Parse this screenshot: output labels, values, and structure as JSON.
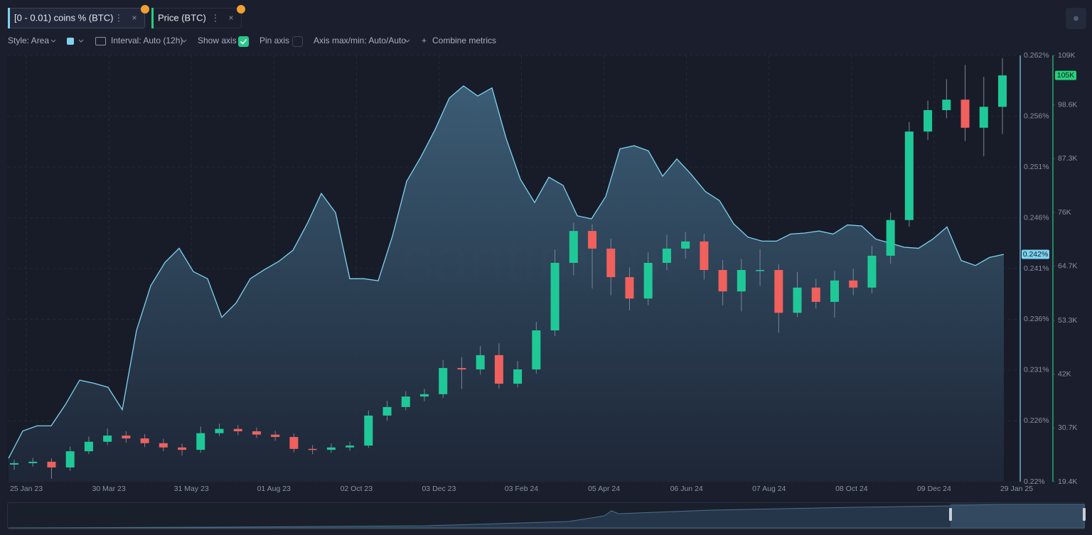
{
  "ui": {
    "toolbar": {
      "style": "Style: Area",
      "interval": "Interval: Auto (12h)",
      "show_axis": "Show axis",
      "pin_axis": "Pin axis",
      "axis_maxmin": "Axis max/min: Auto/Auto",
      "combine": "Combine metrics"
    }
  },
  "chart_data": {
    "type": "combo",
    "watermark": "·santiment",
    "x_tick_labels": [
      "25 Jan 23",
      "30 Mar 23",
      "31 May 23",
      "01 Aug 23",
      "02 Oct 23",
      "03 Dec 23",
      "03 Feb 24",
      "05 Apr 24",
      "06 Jun 24",
      "07 Aug 24",
      "08 Oct 24",
      "09 Dec 24",
      "29 Jan 25"
    ],
    "grid": true,
    "ylim": [
      0.22,
      0.262
    ],
    "yticks": [
      {
        "value": 0.22,
        "label": "0.22%"
      },
      {
        "value": 0.226,
        "label": "0.226%"
      },
      {
        "value": 0.231,
        "label": "0.231%"
      },
      {
        "value": 0.236,
        "label": "0.236%"
      },
      {
        "value": 0.241,
        "label": "0.241%"
      },
      {
        "value": 0.246,
        "label": "0.246%"
      },
      {
        "value": 0.251,
        "label": "0.251%"
      },
      {
        "value": 0.256,
        "label": "0.256%"
      },
      {
        "value": 0.262,
        "label": "0.262%"
      }
    ],
    "y2lim": [
      19.4,
      109
    ],
    "y2ticks": [
      {
        "value": 19.4,
        "label": "19.4K"
      },
      {
        "value": 30.7,
        "label": "30.7K"
      },
      {
        "value": 42,
        "label": "42K"
      },
      {
        "value": 53.3,
        "label": "53.3K"
      },
      {
        "value": 64.7,
        "label": "64.7K"
      },
      {
        "value": 76,
        "label": "76K"
      },
      {
        "value": 87.3,
        "label": "87.3K"
      },
      {
        "value": 98.6,
        "label": "98.6K"
      },
      {
        "value": 109,
        "label": "109K"
      }
    ],
    "series": [
      {
        "name": "[0 - 0.01) coins % (BTC)",
        "type": "area",
        "color": "#7fd3f0",
        "last_value_label": "0.242%",
        "values": [
          0.2223,
          0.225,
          0.2255,
          0.2255,
          0.2276,
          0.23,
          0.2297,
          0.2293,
          0.2271,
          0.2349,
          0.2393,
          0.2416,
          0.243,
          0.2407,
          0.24,
          0.2362,
          0.2376,
          0.24,
          0.2409,
          0.2417,
          0.2428,
          0.2454,
          0.2484,
          0.2465,
          0.24,
          0.24,
          0.2398,
          0.2442,
          0.2496,
          0.252,
          0.2547,
          0.2578,
          0.259,
          0.258,
          0.2588,
          0.2538,
          0.2498,
          0.2475,
          0.25,
          0.2492,
          0.2462,
          0.2459,
          0.2481,
          0.2528,
          0.2531,
          0.2526,
          0.2501,
          0.2518,
          0.2503,
          0.2486,
          0.2477,
          0.2454,
          0.2441,
          0.2437,
          0.2437,
          0.2444,
          0.2445,
          0.2447,
          0.2444,
          0.2453,
          0.2452,
          0.2439,
          0.2435,
          0.2431,
          0.243,
          0.2439,
          0.2451,
          0.2418,
          0.2413,
          0.2421,
          0.2424
        ]
      },
      {
        "name": "Price (BTC)",
        "type": "candlestick",
        "axis": "y2",
        "color": "#26d07c",
        "color_up": "#1fc997",
        "color_down": "#f0605d",
        "last_value_label": "105K",
        "open": [
          23.0,
          23.3,
          23.6,
          22.4,
          25.8,
          27.8,
          29.1,
          28.5,
          27.5,
          26.6,
          26.1,
          29.6,
          30.5,
          30.0,
          29.3,
          28.8,
          26.3,
          26.1,
          26.6,
          27.0,
          33.3,
          35.1,
          37.3,
          37.8,
          43.3,
          43.0,
          46.0,
          40.0,
          43.0,
          51.2,
          65.4,
          72.1,
          68.4,
          62.4,
          57.9,
          65.4,
          68.4,
          69.9,
          63.9,
          59.4,
          63.9,
          63.9,
          54.9,
          60.2,
          57.2,
          61.7,
          60.2,
          66.9,
          74.4,
          93.0,
          97.5,
          99.7,
          93.8,
          98.2
        ],
        "high": [
          24.0,
          24.4,
          24.3,
          26.8,
          28.9,
          30.6,
          30.0,
          29.4,
          28.4,
          27.4,
          31.0,
          31.6,
          31.3,
          30.8,
          30.1,
          29.5,
          27.1,
          27.4,
          27.8,
          34.4,
          36.4,
          38.4,
          38.9,
          45.0,
          45.6,
          47.9,
          48.5,
          44.8,
          53.0,
          68.2,
          73.8,
          73.5,
          70.5,
          64.4,
          67.6,
          71.3,
          71.9,
          71.5,
          66.0,
          66.2,
          68.3,
          65.1,
          63.5,
          62.0,
          63.7,
          64.2,
          69.0,
          76.0,
          95.0,
          99.5,
          104.0,
          107.0,
          104.5,
          108.4
        ],
        "low": [
          21.9,
          22.6,
          20.0,
          21.7,
          25.2,
          27.1,
          27.6,
          26.7,
          25.8,
          24.9,
          25.5,
          29.0,
          29.2,
          28.6,
          28.0,
          25.6,
          25.2,
          25.5,
          25.9,
          26.5,
          32.2,
          34.4,
          36.3,
          37.0,
          38.9,
          41.9,
          39.0,
          39.2,
          42.1,
          50.0,
          62.8,
          60.0,
          58.6,
          55.4,
          56.5,
          63.9,
          66.3,
          61.9,
          56.5,
          55.2,
          60.6,
          50.7,
          54.0,
          55.8,
          53.9,
          58.6,
          59.0,
          65.2,
          73.0,
          91.2,
          95.8,
          91.0,
          87.8,
          92.5
        ],
        "close": [
          23.3,
          23.6,
          22.4,
          25.8,
          27.8,
          29.1,
          28.5,
          27.5,
          26.6,
          26.1,
          29.6,
          30.5,
          30.0,
          29.3,
          28.8,
          26.3,
          26.1,
          26.6,
          27.0,
          33.3,
          35.1,
          37.3,
          37.8,
          43.3,
          43.0,
          46.0,
          40.0,
          43.0,
          51.2,
          65.4,
          72.1,
          68.4,
          62.4,
          57.9,
          65.4,
          68.4,
          69.9,
          63.9,
          59.4,
          63.9,
          63.9,
          54.9,
          60.2,
          57.2,
          61.7,
          60.2,
          66.9,
          74.4,
          93.0,
          97.5,
          99.7,
          93.8,
          98.2,
          104.8
        ]
      }
    ]
  }
}
